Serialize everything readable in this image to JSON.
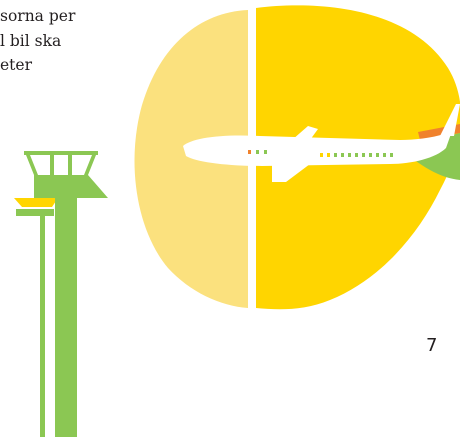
{
  "body_text": {
    "lines": [
      "sorna per",
      "l bil ska",
      "eter"
    ]
  },
  "page_number": "7",
  "illustration": {
    "subject": "airplane-over-yellow-shape",
    "icons": [
      "airplane-icon",
      "control-tower-icon"
    ],
    "colors": {
      "light_yellow": "#FBE17E",
      "bright_yellow": "#FFD500",
      "green": "#8BC753",
      "orange": "#F0822D",
      "white": "#FFFFFF",
      "text": "#231F20"
    }
  }
}
